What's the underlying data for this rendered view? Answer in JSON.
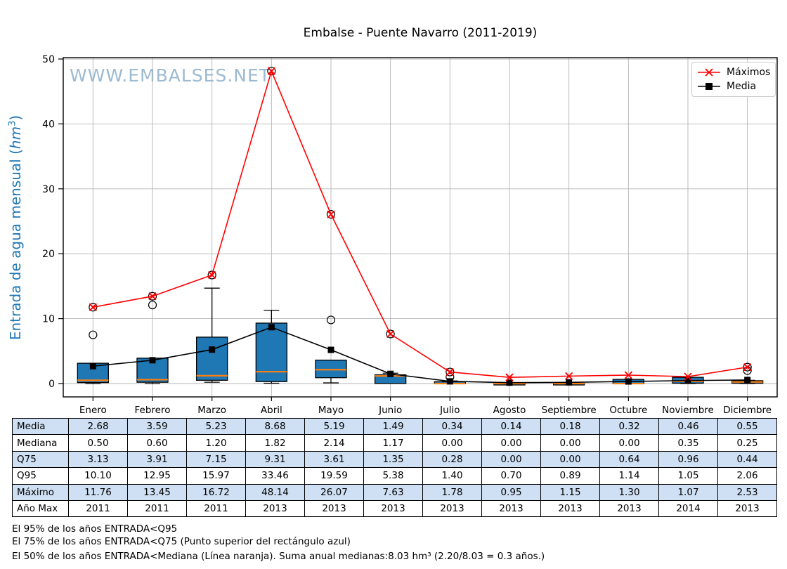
{
  "title": "Embalse - Puente Navarro (2011-2019)",
  "watermark": "WWW.EMBALSES.NET",
  "ylabel": {
    "prefix": "Entrada de agua mensual (",
    "unit": "hm",
    "sup": "3",
    "suffix": ")"
  },
  "legend": {
    "maximos": "Máximos",
    "media": "Media"
  },
  "footnotes": [
    "El 95% de los años ENTRADA<Q95",
    "El 75% de los años ENTRADA<Q75 (Punto superior del rectángulo azul)",
    "El 50% de los años ENTRADA<Mediana (Línea naranja). Suma anual medianas:8.03 hm³ (2.20/8.03 = 0.3 años.)"
  ],
  "chart_data": {
    "type": "box+line",
    "title": "Embalse - Puente Navarro (2011-2019)",
    "categories": [
      "Enero",
      "Febrero",
      "Marzo",
      "Abril",
      "Mayo",
      "Junio",
      "Julio",
      "Agosto",
      "Septiembre",
      "Octubre",
      "Noviembre",
      "Diciembre"
    ],
    "ylabel": "Entrada de agua mensual (hm³)",
    "ylim": [
      -2,
      50.3
    ],
    "yticks": [
      0,
      10,
      20,
      30,
      40,
      50
    ],
    "grid": true,
    "legend_position": "upper right",
    "grid_color": "#b4b4b4",
    "series": [
      {
        "name": "Máximos",
        "type": "line",
        "marker": "x",
        "color": "#ff0000",
        "values": [
          11.76,
          13.45,
          16.72,
          48.14,
          26.07,
          7.63,
          1.78,
          0.95,
          1.15,
          1.3,
          1.07,
          2.53
        ]
      },
      {
        "name": "Media",
        "type": "line",
        "marker": "square",
        "color": "#000000",
        "values": [
          2.68,
          3.59,
          5.23,
          8.68,
          5.19,
          1.49,
          0.34,
          0.14,
          0.18,
          0.32,
          0.46,
          0.55
        ]
      }
    ],
    "boxplot": {
      "fill": "#1f77b4",
      "median_color": "#ff7f0e",
      "q25": [
        0.15,
        0.2,
        0.5,
        0.3,
        0.9,
        0.0,
        0.0,
        0.0,
        0.0,
        0.0,
        0.05,
        0.05
      ],
      "median": [
        0.5,
        0.6,
        1.2,
        1.82,
        2.14,
        1.17,
        0.0,
        0.0,
        0.0,
        0.0,
        0.35,
        0.25
      ],
      "q75": [
        3.13,
        3.91,
        7.15,
        9.31,
        3.61,
        1.35,
        0.28,
        0.0,
        0.0,
        0.64,
        0.96,
        0.44
      ],
      "whisker_low": [
        0.0,
        0.0,
        0.2,
        0.05,
        0.1,
        0.0,
        0.0,
        0.0,
        0.0,
        0.0,
        0.0,
        0.0
      ],
      "whisker_high": [
        3.13,
        3.91,
        14.7,
        11.3,
        3.61,
        1.6,
        0.4,
        0.0,
        0.0,
        0.64,
        0.96,
        0.5
      ],
      "fliers": [
        [
          7.5,
          11.76
        ],
        [
          12.1,
          13.45
        ],
        [
          16.72
        ],
        [
          48.14
        ],
        [
          9.8,
          26.07
        ],
        [
          7.63
        ],
        [
          1.0,
          1.78
        ],
        [],
        [],
        [],
        [],
        [
          2.0,
          2.53
        ]
      ]
    },
    "stats_table": {
      "shaded_row_color": "#cfe0f4",
      "rows": [
        {
          "label": "Media",
          "values": [
            "2.68",
            "3.59",
            "5.23",
            "8.68",
            "5.19",
            "1.49",
            "0.34",
            "0.14",
            "0.18",
            "0.32",
            "0.46",
            "0.55"
          ]
        },
        {
          "label": "Mediana",
          "values": [
            "0.50",
            "0.60",
            "1.20",
            "1.82",
            "2.14",
            "1.17",
            "0.00",
            "0.00",
            "0.00",
            "0.00",
            "0.35",
            "0.25"
          ]
        },
        {
          "label": "Q75",
          "values": [
            "3.13",
            "3.91",
            "7.15",
            "9.31",
            "3.61",
            "1.35",
            "0.28",
            "0.00",
            "0.00",
            "0.64",
            "0.96",
            "0.44"
          ]
        },
        {
          "label": "Q95",
          "values": [
            "10.10",
            "12.95",
            "15.97",
            "33.46",
            "19.59",
            "5.38",
            "1.40",
            "0.70",
            "0.89",
            "1.14",
            "1.05",
            "2.06"
          ]
        },
        {
          "label": "Máximo",
          "values": [
            "11.76",
            "13.45",
            "16.72",
            "48.14",
            "26.07",
            "7.63",
            "1.78",
            "0.95",
            "1.15",
            "1.30",
            "1.07",
            "2.53"
          ]
        },
        {
          "label": "Año Max",
          "values": [
            "2011",
            "2011",
            "2011",
            "2013",
            "2013",
            "2013",
            "2013",
            "2013",
            "2013",
            "2013",
            "2014",
            "2013"
          ]
        }
      ]
    }
  }
}
